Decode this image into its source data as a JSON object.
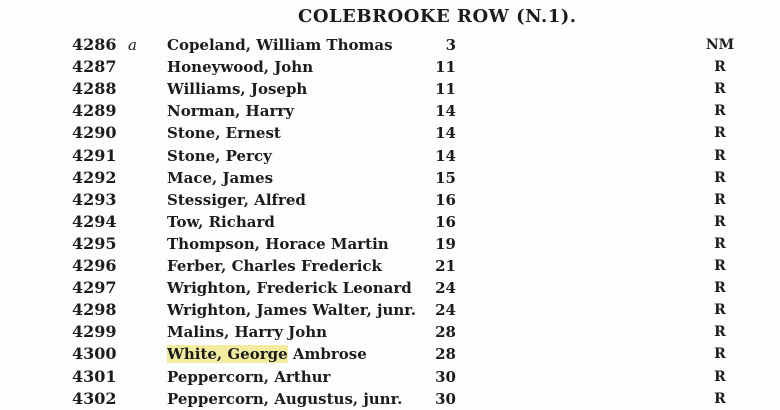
{
  "title": "COLEBROOKE ROW (N.1).",
  "highlight_color": "#f3eca0",
  "rows": [
    {
      "num": "4286",
      "mark": "a",
      "name": "Copeland, William Thomas",
      "house": "3",
      "qual": "NM"
    },
    {
      "num": "4287",
      "mark": "",
      "name": "Honeywood, John",
      "house": "11",
      "qual": "R"
    },
    {
      "num": "4288",
      "mark": "",
      "name": "Williams, Joseph",
      "house": "11",
      "qual": "R"
    },
    {
      "num": "4289",
      "mark": "",
      "name": "Norman, Harry",
      "house": "14",
      "qual": "R"
    },
    {
      "num": "4290",
      "mark": "",
      "name": "Stone, Ernest",
      "house": "14",
      "qual": "R"
    },
    {
      "num": "4291",
      "mark": "",
      "name": "Stone, Percy",
      "house": "14",
      "qual": "R"
    },
    {
      "num": "4292",
      "mark": "",
      "name": "Mace, James",
      "house": "15",
      "qual": "R"
    },
    {
      "num": "4293",
      "mark": "",
      "name": "Stessiger, Alfred",
      "house": "16",
      "qual": "R"
    },
    {
      "num": "4294",
      "mark": "",
      "name": "Tow, Richard",
      "house": "16",
      "qual": "R"
    },
    {
      "num": "4295",
      "mark": "",
      "name": "Thompson, Horace Martin",
      "house": "19",
      "qual": "R"
    },
    {
      "num": "4296",
      "mark": "",
      "name": "Ferber, Charles Frederick",
      "house": "21",
      "qual": "R"
    },
    {
      "num": "4297",
      "mark": "",
      "name": "Wrighton, Frederick Leonard",
      "house": "24",
      "qual": "R"
    },
    {
      "num": "4298",
      "mark": "",
      "name": "Wrighton, James Walter, junr.",
      "house": "24",
      "qual": "R"
    },
    {
      "num": "4299",
      "mark": "",
      "name": "Malins, Harry John",
      "house": "28",
      "qual": "R"
    },
    {
      "num": "4300",
      "mark": "",
      "name_highlight": "White, George",
      "name_rest": " Ambrose",
      "name": "",
      "house": "28",
      "qual": "R"
    },
    {
      "num": "4301",
      "mark": "",
      "name": "Peppercorn, Arthur",
      "house": "30",
      "qual": "R"
    },
    {
      "num": "4302",
      "mark": "",
      "name": "Peppercorn, Augustus, junr.",
      "house": "30",
      "qual": "R"
    }
  ]
}
